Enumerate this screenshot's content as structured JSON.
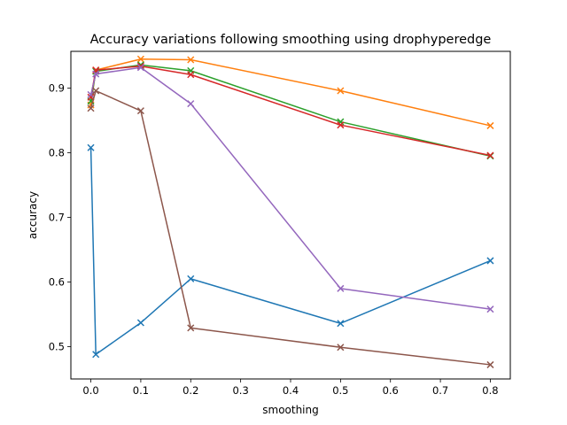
{
  "chart_data": {
    "type": "line",
    "title": "Accuracy variations following smoothing using drophyperedge",
    "xlabel": "smoothing",
    "ylabel": "accuracy",
    "xlim": [
      -0.04,
      0.84
    ],
    "ylim": [
      0.45,
      0.957
    ],
    "xticks": [
      0.0,
      0.1,
      0.2,
      0.3,
      0.4,
      0.5,
      0.6,
      0.7,
      0.8
    ],
    "xtick_labels": [
      "0.0",
      "0.1",
      "0.2",
      "0.3",
      "0.4",
      "0.5",
      "0.6",
      "0.7",
      "0.8"
    ],
    "yticks": [
      0.5,
      0.6,
      0.7,
      0.8,
      0.9
    ],
    "ytick_labels": [
      "0.5",
      "0.6",
      "0.7",
      "0.8",
      "0.9"
    ],
    "marker": "x",
    "grid": false,
    "legend": false,
    "series": [
      {
        "color": "#1f77b4",
        "x": [
          0.0,
          0.01,
          0.1,
          0.2,
          0.5,
          0.8
        ],
        "y": [
          0.808,
          0.488,
          0.537,
          0.605,
          0.536,
          0.633
        ]
      },
      {
        "color": "#ff7f0e",
        "x": [
          0.0,
          0.01,
          0.1,
          0.2,
          0.5,
          0.8
        ],
        "y": [
          0.874,
          0.928,
          0.945,
          0.944,
          0.896,
          0.842
        ]
      },
      {
        "color": "#2ca02c",
        "x": [
          0.0,
          0.01,
          0.1,
          0.2,
          0.5,
          0.8
        ],
        "y": [
          0.88,
          0.926,
          0.936,
          0.927,
          0.848,
          0.795
        ]
      },
      {
        "color": "#d62728",
        "x": [
          0.0,
          0.01,
          0.1,
          0.2,
          0.5,
          0.8
        ],
        "y": [
          0.886,
          0.928,
          0.934,
          0.921,
          0.843,
          0.796
        ]
      },
      {
        "color": "#9467bd",
        "x": [
          0.0,
          0.01,
          0.1,
          0.2,
          0.5,
          0.8
        ],
        "y": [
          0.89,
          0.922,
          0.932,
          0.876,
          0.59,
          0.558
        ]
      },
      {
        "color": "#8c564b",
        "x": [
          0.0,
          0.01,
          0.1,
          0.2,
          0.5,
          0.8
        ],
        "y": [
          0.869,
          0.896,
          0.865,
          0.529,
          0.499,
          0.472
        ]
      }
    ]
  }
}
